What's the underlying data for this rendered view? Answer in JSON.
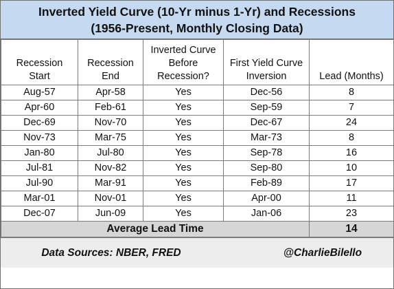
{
  "title": {
    "line1": "Inverted Yield Curve (10-Yr minus 1-Yr) and Recessions",
    "line2": "(1956-Present, Monthly Closing Data)"
  },
  "headers": [
    [
      "Recession",
      "Start"
    ],
    [
      "Recession",
      "End"
    ],
    [
      "Inverted Curve",
      "Before",
      "Recession?"
    ],
    [
      "First Yield Curve",
      "Inversion"
    ],
    [
      "Lead (Months)"
    ]
  ],
  "rows": [
    {
      "start": "Aug-57",
      "end": "Apr-58",
      "inverted": "Yes",
      "first_inversion": "Dec-56",
      "lead": "8"
    },
    {
      "start": "Apr-60",
      "end": "Feb-61",
      "inverted": "Yes",
      "first_inversion": "Sep-59",
      "lead": "7"
    },
    {
      "start": "Dec-69",
      "end": "Nov-70",
      "inverted": "Yes",
      "first_inversion": "Dec-67",
      "lead": "24"
    },
    {
      "start": "Nov-73",
      "end": "Mar-75",
      "inverted": "Yes",
      "first_inversion": "Mar-73",
      "lead": "8"
    },
    {
      "start": "Jan-80",
      "end": "Jul-80",
      "inverted": "Yes",
      "first_inversion": "Sep-78",
      "lead": "16"
    },
    {
      "start": "Jul-81",
      "end": "Nov-82",
      "inverted": "Yes",
      "first_inversion": "Sep-80",
      "lead": "10"
    },
    {
      "start": "Jul-90",
      "end": "Mar-91",
      "inverted": "Yes",
      "first_inversion": "Feb-89",
      "lead": "17"
    },
    {
      "start": "Mar-01",
      "end": "Nov-01",
      "inverted": "Yes",
      "first_inversion": "Apr-00",
      "lead": "11"
    },
    {
      "start": "Dec-07",
      "end": "Jun-09",
      "inverted": "Yes",
      "first_inversion": "Jan-06",
      "lead": "23"
    }
  ],
  "average": {
    "label": "Average Lead Time",
    "value": "14"
  },
  "footer": {
    "sources": "Data Sources: NBER, FRED",
    "handle": "@CharlieBilello"
  },
  "colors": {
    "title_bg": "#c5daf0",
    "average_bg": "#d6d6d6",
    "footer_bg": "#ededed"
  }
}
